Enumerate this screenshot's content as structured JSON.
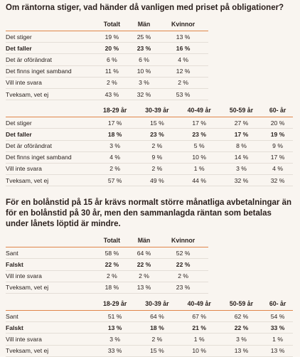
{
  "sections": [
    {
      "question": "Om räntorna stiger, vad händer då vanligen med priset på obligationer?",
      "tables": [
        {
          "header": [
            "Totalt",
            "Män",
            "Kvinnor"
          ],
          "rows": [
            [
              "Det stiger",
              "19 %",
              "25 %",
              "13 %"
            ],
            [
              "Det faller",
              "20 %",
              "23 %",
              "16 %"
            ],
            [
              "Det är oförändrat",
              "6 %",
              "6 %",
              "4 %"
            ],
            [
              "Det finns inget samband",
              "11 %",
              "10 %",
              "12 %"
            ],
            [
              "Vill inte svara",
              "2 %",
              "3 %",
              "2 %"
            ],
            [
              "Tveksam, vet ej",
              "43 %",
              "32 %",
              "53 %"
            ]
          ]
        },
        {
          "header": [
            "18-29 år",
            "30-39 år",
            "40-49 år",
            "50-59 år",
            "60- år"
          ],
          "rows": [
            [
              "Det stiger",
              "17 %",
              "15 %",
              "17 %",
              "27 %",
              "20 %"
            ],
            [
              "Det faller",
              "18 %",
              "23 %",
              "23 %",
              "17 %",
              "19 %"
            ],
            [
              "Det är oförändrat",
              "3 %",
              "2 %",
              "5 %",
              "8 %",
              "9 %"
            ],
            [
              "Det finns inget samband",
              "4 %",
              "9 %",
              "10 %",
              "14 %",
              "17 %"
            ],
            [
              "Vill inte svara",
              "2 %",
              "2 %",
              "1 %",
              "3 %",
              "4 %"
            ],
            [
              "Tveksam, vet ej",
              "57 %",
              "49 %",
              "44 %",
              "32 %",
              "32 %"
            ]
          ]
        }
      ]
    },
    {
      "question": "För en bolånstid på 15 år krävs normalt större månatliga avbetalningar än för en bolånstid på 30 år, men den sammanlagda räntan som betalas under lånets löptid är mindre.",
      "tables": [
        {
          "header": [
            "Totalt",
            "Män",
            "Kvinnor"
          ],
          "rows": [
            [
              "Sant",
              "58 %",
              "64 %",
              "52 %"
            ],
            [
              "Falskt",
              "22 %",
              "22 %",
              "22 %"
            ],
            [
              "Vill inte svara",
              "2 %",
              "2 %",
              "2 %"
            ],
            [
              "Tveksam, vet ej",
              "18 %",
              "13 %",
              "23 %"
            ]
          ]
        },
        {
          "header": [
            "18-29 år",
            "30-39 år",
            "40-49 år",
            "50-59 år",
            "60- år"
          ],
          "rows": [
            [
              "Sant",
              "51 %",
              "64 %",
              "67 %",
              "62 %",
              "54 %"
            ],
            [
              "Falskt",
              "13 %",
              "18 %",
              "21 %",
              "22 %",
              "33 %"
            ],
            [
              "Vill inte svara",
              "3 %",
              "2 %",
              "1 %",
              "3 %",
              "1 %"
            ],
            [
              "Tveksam, vet ej",
              "33 %",
              "15 %",
              "10 %",
              "13 %",
              "13 %"
            ]
          ]
        }
      ]
    }
  ]
}
